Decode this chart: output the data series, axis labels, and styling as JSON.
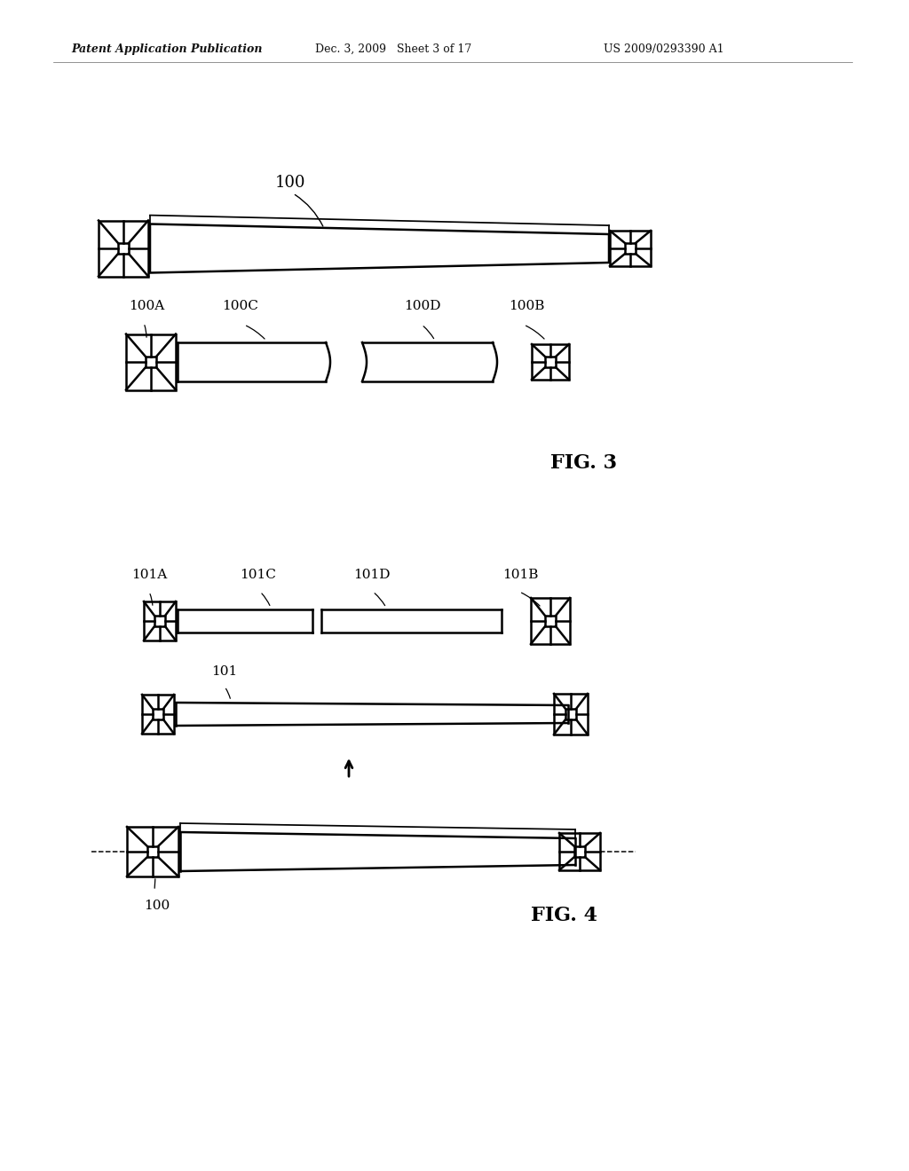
{
  "bg_color": "#ffffff",
  "header_left": "Patent Application Publication",
  "header_mid": "Dec. 3, 2009   Sheet 3 of 17",
  "header_right": "US 2009/0293390 A1",
  "fig3_label": "FIG. 3",
  "fig4_label": "FIG. 4",
  "label_100": "100",
  "label_100A": "100A",
  "label_100B": "100B",
  "label_100C": "100C",
  "label_100D": "100D",
  "label_101A": "101A",
  "label_101B": "101B",
  "label_101C": "101C",
  "label_101D": "101D",
  "label_101": "101",
  "label_100_bottom": "100",
  "line_color": "#000000",
  "lw": 1.8
}
